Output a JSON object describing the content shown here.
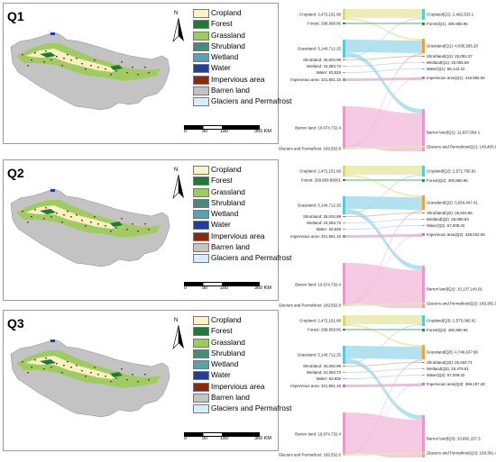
{
  "legend_items": [
    {
      "label": "Cropland",
      "color": "#fcf3c4"
    },
    {
      "label": "Forest",
      "color": "#1f7a3a"
    },
    {
      "label": "Grassland",
      "color": "#9ccc5a"
    },
    {
      "label": "Shrubland",
      "color": "#4a8a7a"
    },
    {
      "label": "Wetland",
      "color": "#5b9fb0"
    },
    {
      "label": "Water",
      "color": "#1f3f9a"
    },
    {
      "label": "Impervious area",
      "color": "#8b2a10"
    },
    {
      "label": "Barren land",
      "color": "#c3c3c3"
    },
    {
      "label": "Glaciers and Permafrost",
      "color": "#d6eefa"
    }
  ],
  "north_label": "N",
  "scale": {
    "ticks": [
      "0",
      "90",
      "180",
      "360 KM"
    ]
  },
  "quarters": [
    {
      "label": "Q1",
      "left": [
        {
          "label": "Cropland: 2,472,151.68",
          "color": "#d8d87a"
        },
        {
          "label": "Forest: 299,668.86",
          "color": "#2e8b4a"
        },
        {
          "label": "Grassland: 5,140,712.25",
          "color": "#5bc8dc"
        },
        {
          "label": "Shrubland: 25,002.99",
          "color": "#8a7a5a"
        },
        {
          "label": "Wetland: 24,083.73",
          "color": "#9aa0c8"
        },
        {
          "label": "Water: 63,828",
          "color": "#7f9fd0"
        },
        {
          "label": "Impervious area: 321,951.15",
          "color": "#c07ab0"
        },
        {
          "label": "Barren land: 10,674,732.4",
          "color": "#e79ac8"
        },
        {
          "label": "Glaciers and Permafrost: 169,552.8",
          "color": "#c8e08a"
        }
      ],
      "right": [
        {
          "label": "Cropland(Q1): 2,492,533.1",
          "color": "#5bc8dc"
        },
        {
          "label": "Forest(Q1): 400,980.96",
          "color": "#2e8b4a"
        },
        {
          "label": "Grassland(Q1): 4,030,595.28",
          "color": "#f0a040"
        },
        {
          "label": "Shrubland(Q1): 25,082.37",
          "color": "#8a7a5a"
        },
        {
          "label": "Wetland(Q1): 20,055.69",
          "color": "#9aa0c8"
        },
        {
          "label": "Water(Q1): 58,143.42",
          "color": "#7f9fd0"
        },
        {
          "label": "Impervious area(Q1): 416,955.06",
          "color": "#c07ab0"
        },
        {
          "label": "Barren land(Q1): 11,637,854.1",
          "color": "#e79ac8"
        },
        {
          "label": "Glaciers and Permafrost(Q1): 149,483.88",
          "color": "#c8e08a"
        }
      ]
    },
    {
      "label": "Q2",
      "left": [
        {
          "label": "Cropland: 2,472,151.68",
          "color": "#d8d87a"
        },
        {
          "label": "Forest: 299,668.86001",
          "color": "#2e8b4a"
        },
        {
          "label": "Grassland: 5,140,712.25",
          "color": "#5bc8dc"
        },
        {
          "label": "Shrubland: 25,002.99",
          "color": "#8a7a5a"
        },
        {
          "label": "Wetland: 24,083.73",
          "color": "#9aa0c8"
        },
        {
          "label": "Water: 63,828",
          "color": "#7f9fd0"
        },
        {
          "label": "Impervious area: 321,951.15",
          "color": "#c07ab0"
        },
        {
          "label": "Barren land: 10,674,732.4",
          "color": "#e79ac8"
        },
        {
          "label": "Glaciers and Permafrost: 169,552.8",
          "color": "#c8e08a"
        }
      ],
      "right": [
        {
          "label": "Cropland(Q2): 2,572,756.82",
          "color": "#5bc8dc"
        },
        {
          "label": "Forest(Q2): 400,980.96",
          "color": "#2e8b4a"
        },
        {
          "label": "Grassland(Q2): 5,654,447.01",
          "color": "#f0a040"
        },
        {
          "label": "Shrubland(Q2): 25,834.86",
          "color": "#8a7a5a"
        },
        {
          "label": "Wetland(Q2): 26,096.83",
          "color": "#9aa0c8"
        },
        {
          "label": "Water(Q2): 67,009.32",
          "color": "#7f9fd0"
        },
        {
          "label": "Impervious area(Q2): 338,032.08",
          "color": "#c07ab0"
        },
        {
          "label": "Barren land(Q2): 10,137,140.91",
          "color": "#e79ac8"
        },
        {
          "label": "Glaciers and Permafrost(Q2): 169,382.97",
          "color": "#c8e08a"
        }
      ]
    },
    {
      "label": "Q3",
      "left": [
        {
          "label": "Cropland: 2,472,151.68",
          "color": "#d8d87a"
        },
        {
          "label": "Forest: 299,668.86",
          "color": "#2e8b4a"
        },
        {
          "label": "Grassland: 5,140,712.25",
          "color": "#5bc8dc"
        },
        {
          "label": "Shrubland: 25,002.99",
          "color": "#8a7a5a"
        },
        {
          "label": "Wetland: 24,083.73",
          "color": "#9aa0c8"
        },
        {
          "label": "Water: 63,828",
          "color": "#7f9fd0"
        },
        {
          "label": "Impervious area: 321,951.15",
          "color": "#c07ab0"
        },
        {
          "label": "Barren land: 10,674,732.4",
          "color": "#e79ac8"
        },
        {
          "label": "Glaciers and Permafrost: 169,552.8",
          "color": "#c8e08a"
        }
      ],
      "right": [
        {
          "label": "Cropland(Q3): 2,575,096.02",
          "color": "#5bc8dc"
        },
        {
          "label": "Forest(Q3): 400,980.96",
          "color": "#2e8b4a"
        },
        {
          "label": "Grassland(Q3): 4,749,637.96",
          "color": "#f0a040"
        },
        {
          "label": "Shrubland(Q3): 25,634.71",
          "color": "#8a7a5a"
        },
        {
          "label": "Wetland(Q3): 26,478.81",
          "color": "#9aa0c8"
        },
        {
          "label": "Water(Q3): 67,009.32",
          "color": "#7f9fd0"
        },
        {
          "label": "Impervious area(Q3): 396,107.28",
          "color": "#c07ab0"
        },
        {
          "label": "Barren land(Q3): 10,992,157.3",
          "color": "#e79ac8"
        },
        {
          "label": "Glaciers and Permafrost(Q3): 169,381.44",
          "color": "#c8e08a"
        }
      ]
    }
  ]
}
